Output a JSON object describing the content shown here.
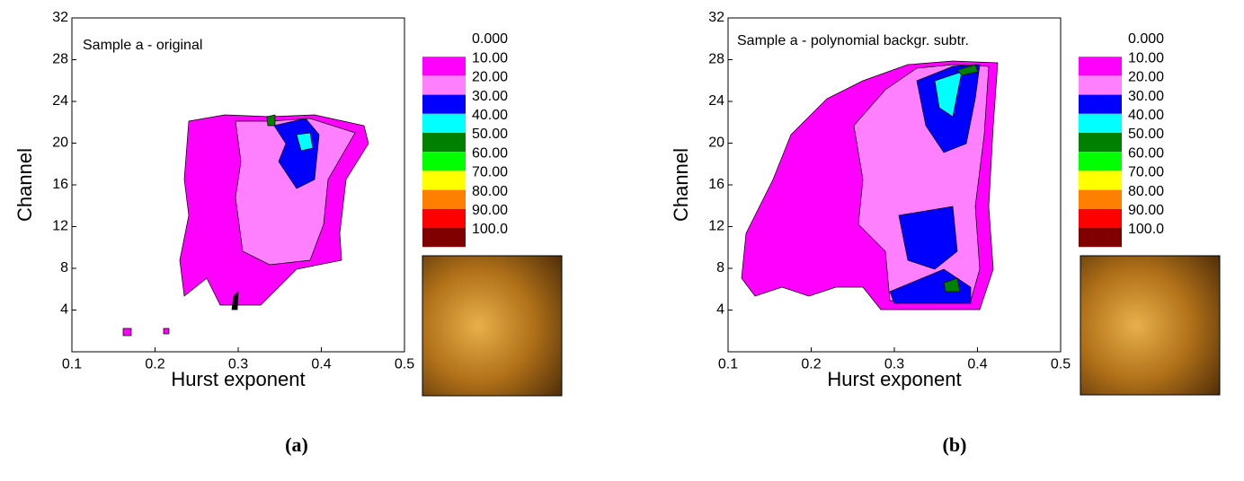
{
  "chart_data": [
    {
      "type": "contour",
      "annotation": "Sample a - original",
      "xlabel": "Hurst exponent",
      "ylabel": "Channel",
      "xlim": [
        0.1,
        0.5
      ],
      "xticks": [
        0.1,
        0.2,
        0.3,
        0.4,
        0.5
      ],
      "ylim": [
        0,
        32
      ],
      "yticks": [
        4,
        8,
        12,
        16,
        20,
        24,
        28,
        32
      ],
      "levels": [
        {
          "value": 0,
          "label": "0.000"
        },
        {
          "value": 10,
          "label": "10.00"
        },
        {
          "value": 20,
          "label": "20.00"
        },
        {
          "value": 30,
          "label": "30.00"
        },
        {
          "value": 40,
          "label": "40.00"
        },
        {
          "value": 50,
          "label": "50.00"
        },
        {
          "value": 60,
          "label": "60.00"
        },
        {
          "value": 70,
          "label": "70.00"
        },
        {
          "value": 80,
          "label": "80.00"
        },
        {
          "value": 90,
          "label": "90.00"
        },
        {
          "value": 100,
          "label": "100.0"
        }
      ],
      "colors": [
        "#ffffff",
        "#ff00ff",
        "#ff80ff",
        "#0000ff",
        "#00ffff",
        "#008000",
        "#00ff00",
        "#ffff00",
        "#ff8000",
        "#ff0000",
        "#800000"
      ],
      "caption": "(a)"
    },
    {
      "type": "contour",
      "annotation": "Sample a - polynomial backgr. subtr.",
      "xlabel": "Hurst exponent",
      "ylabel": "Channel",
      "xlim": [
        0.1,
        0.5
      ],
      "xticks": [
        0.1,
        0.2,
        0.3,
        0.4,
        0.5
      ],
      "ylim": [
        0,
        32
      ],
      "yticks": [
        4,
        8,
        12,
        16,
        20,
        24,
        28,
        32
      ],
      "levels": [
        {
          "value": 0,
          "label": "0.000"
        },
        {
          "value": 10,
          "label": "10.00"
        },
        {
          "value": 20,
          "label": "20.00"
        },
        {
          "value": 30,
          "label": "30.00"
        },
        {
          "value": 40,
          "label": "40.00"
        },
        {
          "value": 50,
          "label": "50.00"
        },
        {
          "value": 60,
          "label": "60.00"
        },
        {
          "value": 70,
          "label": "70.00"
        },
        {
          "value": 80,
          "label": "80.00"
        },
        {
          "value": 90,
          "label": "90.00"
        },
        {
          "value": 100,
          "label": "100.0"
        }
      ],
      "colors": [
        "#ffffff",
        "#ff00ff",
        "#ff80ff",
        "#0000ff",
        "#00ffff",
        "#008000",
        "#00ff00",
        "#ffff00",
        "#ff8000",
        "#ff0000",
        "#800000"
      ],
      "caption": "(b)"
    }
  ]
}
